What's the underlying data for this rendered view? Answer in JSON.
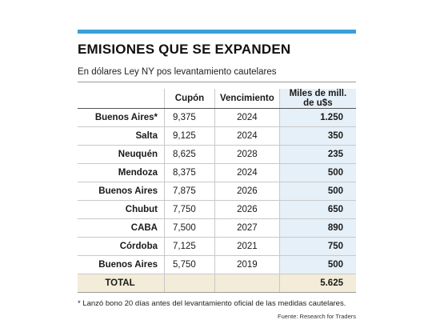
{
  "title": "EMISIONES QUE SE EXPANDEN",
  "subtitle": "En dólares Ley NY pos levantamiento cautelares",
  "headers": [
    "",
    "Cupón",
    "Vencimiento",
    "Miles de mill. de u$s"
  ],
  "rows": [
    {
      "name": "Buenos Aires*",
      "cupon": "9,375",
      "vencimiento": "2024",
      "miles": "1.250"
    },
    {
      "name": "Salta",
      "cupon": "9,125",
      "vencimiento": "2024",
      "miles": "350"
    },
    {
      "name": "Neuquén",
      "cupon": "8,625",
      "vencimiento": "2028",
      "miles": "235"
    },
    {
      "name": "Mendoza",
      "cupon": "8,375",
      "vencimiento": "2024",
      "miles": "500"
    },
    {
      "name": "Buenos Aires",
      "cupon": "7,875",
      "vencimiento": "2026",
      "miles": "500"
    },
    {
      "name": "Chubut",
      "cupon": "7,750",
      "vencimiento": "2026",
      "miles": "650"
    },
    {
      "name": "CABA",
      "cupon": "7,500",
      "vencimiento": "2027",
      "miles": "890"
    },
    {
      "name": "Córdoba",
      "cupon": "7,125",
      "vencimiento": "2021",
      "miles": "750"
    },
    {
      "name": "Buenos Aires",
      "cupon": "5,750",
      "vencimiento": "2019",
      "miles": "500"
    }
  ],
  "total": {
    "label": "TOTAL",
    "value": "5.625"
  },
  "footnote": "* Lanzó bono 20 días antes del levantamiento oficial de las medidas cautelares.",
  "source": "Fuente: Research for Traders",
  "colors": {
    "accent": "#3aa0d8",
    "highlight": "#e6f0f8",
    "total_bg": "#f2ecd8"
  }
}
